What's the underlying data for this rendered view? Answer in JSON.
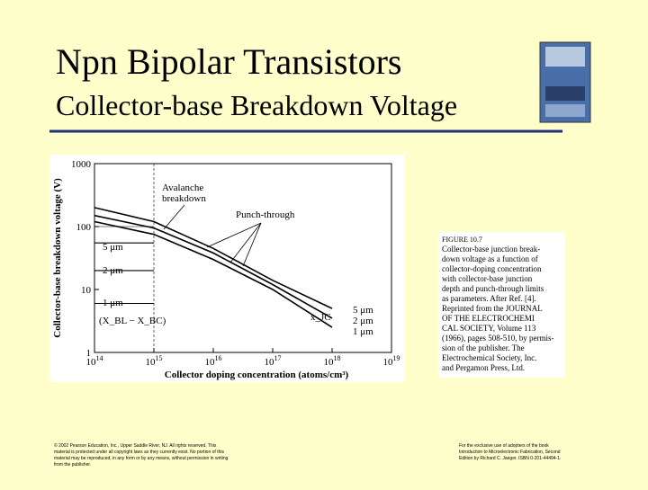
{
  "slide": {
    "title": "Npn Bipolar Transistors",
    "subtitle": "Collector-base Breakdown Voltage",
    "caption": [
      "FIGURE 10.7",
      "Collector-base junction break-",
      "down voltage as a function of",
      "collector-doping concentration",
      "with collector-base junction",
      "depth and punch-through limits",
      "as parameters. After Ref. [4].",
      "Reprinted from the JOURNAL",
      "OF THE ELECTROCHEMI",
      "CAL SOCIETY, Volume 113",
      "(1966), pages 508-510, by permis-",
      "sion of the publisher. The",
      "Electrochemical Society, Inc.",
      "and Pergamon Press, Ltd."
    ],
    "footer_left": [
      "© 2002 Pearson Education, Inc., Upper Saddle River, NJ. All rights reserved. This",
      "material is protected under all copyright laws as they currently exist. No portion of this",
      "material may be reproduced, in any form or by any means, without permission in writing",
      "from the publisher."
    ],
    "footer_right": [
      "For the exclusive use of adopters of the book",
      "Introduction to Microelectronic Fabrication, Second",
      "Edition by Richard C. Jaeger. ISBN 0-201-44494-1."
    ]
  },
  "chart_data": {
    "type": "line",
    "x_label": "Collector doping concentration (atoms/cm³)",
    "y_label": "Collector-base breakdown voltage (V)",
    "log_x": true,
    "log_y": true,
    "xlim": [
      100000000000000.0,
      1e+19
    ],
    "ylim": [
      1,
      1000
    ],
    "xticks": [
      {
        "value": 100000000000000.0,
        "base": "10",
        "exponent": "14"
      },
      {
        "value": 1000000000000000.0,
        "base": "10",
        "exponent": "15"
      },
      {
        "value": 1e+16,
        "base": "10",
        "exponent": "16"
      },
      {
        "value": 1e+17,
        "base": "10",
        "exponent": "17"
      },
      {
        "value": 1e+18,
        "base": "10",
        "exponent": "18"
      },
      {
        "value": 1e+19,
        "base": "10",
        "exponent": "19"
      }
    ],
    "yticks": [
      1,
      10,
      100,
      1000
    ],
    "x": [
      100000000000000.0,
      1000000000000000.0,
      1e+16,
      1e+17,
      1e+18,
      1e+19
    ],
    "series": [
      {
        "color": "#000000",
        "values": [
          200,
          120,
          45,
          14,
          5,
          null
        ]
      },
      {
        "color": "#000000",
        "values": [
          150,
          95,
          38,
          12,
          3.5,
          null
        ]
      },
      {
        "color": "#000000",
        "values": [
          120,
          75,
          30,
          10,
          2.5,
          null
        ]
      },
      {
        "color": "#000000",
        "values": [
          55,
          55,
          null,
          null,
          null,
          null
        ]
      },
      {
        "color": "#000000",
        "values": [
          20,
          20,
          null,
          null,
          null,
          null
        ]
      },
      {
        "color": "#000000",
        "values": [
          6,
          6,
          null,
          null,
          null,
          null
        ]
      }
    ],
    "annotations": [
      "Avalanche",
      "breakdown",
      "Punch-through",
      "5 μm",
      "2 μm",
      "1 μm",
      "(X_BL − X_BC)",
      "5 μm",
      "2 μm",
      "1 μm",
      "x_JC"
    ]
  }
}
